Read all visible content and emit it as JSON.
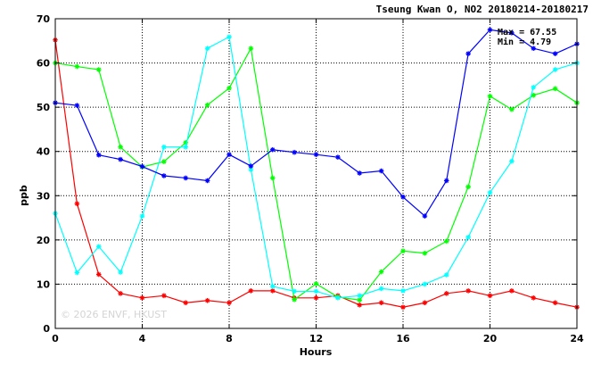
{
  "chart_data": {
    "type": "line",
    "title": "Tseung Kwan O, NO2 20180214-20180217",
    "xlabel": "Hours",
    "ylabel": "ppb",
    "xlim": [
      0,
      24
    ],
    "ylim": [
      0,
      70
    ],
    "xticks": [
      0,
      4,
      8,
      12,
      16,
      20,
      24
    ],
    "yticks": [
      0,
      10,
      20,
      30,
      40,
      50,
      60,
      70
    ],
    "grid": true,
    "x": [
      0,
      1,
      2,
      3,
      4,
      5,
      6,
      7,
      8,
      9,
      10,
      11,
      12,
      13,
      14,
      15,
      16,
      17,
      18,
      19,
      20,
      21,
      22,
      23,
      24
    ],
    "series": [
      {
        "color": "#ff0000",
        "values": [
          65.2,
          28.2,
          12.2,
          7.9,
          6.9,
          7.4,
          5.8,
          6.3,
          5.8,
          8.5,
          8.5,
          6.9,
          6.9,
          7.4,
          5.3,
          5.8,
          4.8,
          5.8,
          7.9,
          8.5,
          7.4,
          8.5,
          6.9,
          5.8,
          4.8
        ]
      },
      {
        "color": "#00ff00",
        "values": [
          60.0,
          59.2,
          58.5,
          41.0,
          36.5,
          37.7,
          42.0,
          50.5,
          54.3,
          63.3,
          34.0,
          6.5,
          10.1,
          7.1,
          6.4,
          12.8,
          17.5,
          17.0,
          19.7,
          32.0,
          52.5,
          49.5,
          52.7,
          54.2,
          51.0
        ]
      },
      {
        "color": "#00ffff",
        "values": [
          26.0,
          12.6,
          18.5,
          12.7,
          25.4,
          41.0,
          41.0,
          63.3,
          65.9,
          35.9,
          9.5,
          8.4,
          8.4,
          6.9,
          7.4,
          9.0,
          8.5,
          10.0,
          12.1,
          20.6,
          30.7,
          37.8,
          54.5,
          58.5,
          60.0
        ]
      },
      {
        "color": "#0000ff",
        "values": [
          51.0,
          50.4,
          39.2,
          38.2,
          36.6,
          34.5,
          34.0,
          33.4,
          39.3,
          36.7,
          40.4,
          39.8,
          39.3,
          38.7,
          35.1,
          35.6,
          29.7,
          25.4,
          33.4,
          62.1,
          67.5,
          66.8,
          63.3,
          62.1,
          64.3
        ]
      }
    ]
  },
  "stats": {
    "max_label": "Max = 67.55",
    "min_label": "Min =  4.79"
  },
  "watermark": "© 2026  ENVF, HKUST"
}
